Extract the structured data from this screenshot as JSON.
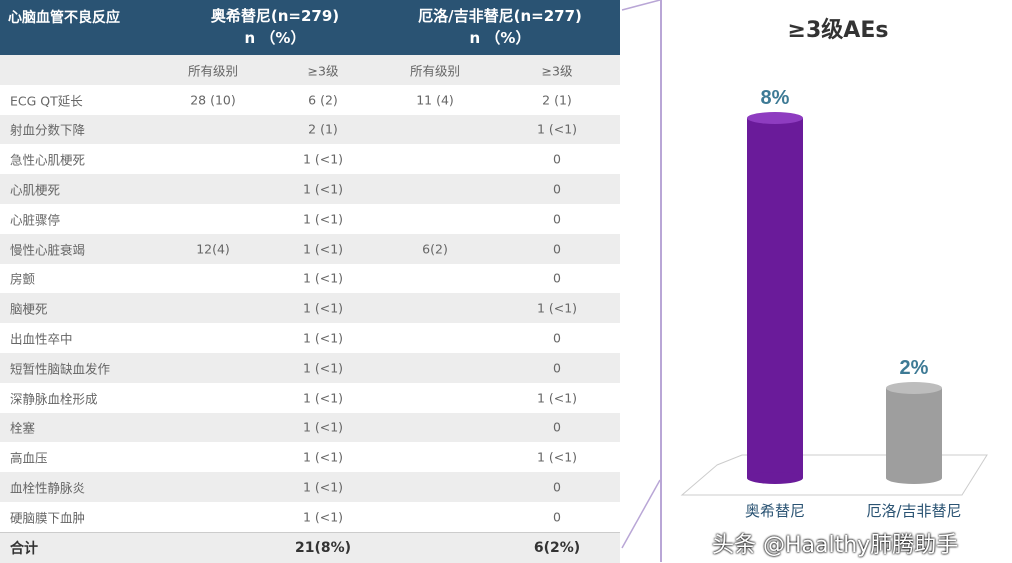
{
  "table": {
    "header_label": "心脑血管不良反应",
    "groups": [
      {
        "name": "奥希替尼(n=279)",
        "unit": "n （%）"
      },
      {
        "name": "厄洛/吉非替尼(n=277)",
        "unit": "n （%）"
      }
    ],
    "subheaders": [
      "所有级别",
      "≥3级",
      "所有级别",
      "≥3级"
    ],
    "rows": [
      [
        "ECG QT延长",
        "28 (10)",
        "6 (2)",
        "11 (4)",
        "2 (1)"
      ],
      [
        "射血分数下降",
        "",
        "2 (1)",
        "",
        "1 (<1)"
      ],
      [
        "急性心肌梗死",
        "",
        "1 (<1)",
        "",
        "0"
      ],
      [
        "心肌梗死",
        "",
        "1 (<1)",
        "",
        "0"
      ],
      [
        "心脏骤停",
        "",
        "1 (<1)",
        "",
        "0"
      ],
      [
        "慢性心脏衰竭",
        "12(4)",
        "1 (<1)",
        "6(2)",
        "0"
      ],
      [
        "房颤",
        "",
        "1 (<1)",
        "",
        "0"
      ],
      [
        "脑梗死",
        "",
        "1 (<1)",
        "",
        "1 (<1)"
      ],
      [
        "出血性卒中",
        "",
        "1 (<1)",
        "",
        "0"
      ],
      [
        "短暂性脑缺血发作",
        "",
        "1 (<1)",
        "",
        "0"
      ],
      [
        "深静脉血栓形成",
        "",
        "1 (<1)",
        "",
        "1 (<1)"
      ],
      [
        "栓塞",
        "",
        "1 (<1)",
        "",
        "0"
      ],
      [
        "高血压",
        "",
        "1 (<1)",
        "",
        "1 (<1)"
      ],
      [
        "血栓性静脉炎",
        "",
        "1 (<1)",
        "",
        "0"
      ],
      [
        "硬脑膜下血肿",
        "",
        "1 (<1)",
        "",
        "0"
      ]
    ],
    "total": [
      "合计",
      "",
      "21(8%)",
      "",
      "6(2%)"
    ]
  },
  "chart_data": {
    "type": "bar",
    "title": "≥3级AEs",
    "categories": [
      "奥希替尼",
      "厄洛/吉非替尼"
    ],
    "values": [
      8,
      2
    ],
    "data_labels": [
      "8%",
      "2%"
    ],
    "colors": [
      "#6a1b9a",
      "#9e9e9e"
    ]
  },
  "watermark": "头条 @Haalthy肺腾助手"
}
